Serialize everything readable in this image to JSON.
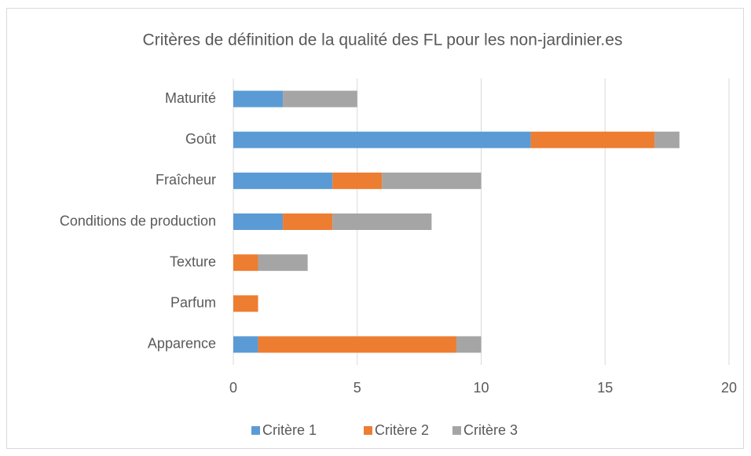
{
  "chart_data": {
    "type": "stacked_barh",
    "title": "Critères de définition de la qualité des FL pour les non-jardinier.es",
    "categories": [
      "Maturité",
      "Goût",
      "Fraîcheur",
      "Conditions de production",
      "Texture",
      "Parfum",
      "Apparence"
    ],
    "series": [
      {
        "name": "Critère 1",
        "color": "#5b9bd5",
        "values": [
          2,
          12,
          4,
          2,
          0,
          0,
          1
        ]
      },
      {
        "name": "Critère 2",
        "color": "#ed7d31",
        "values": [
          0,
          5,
          2,
          2,
          1,
          1,
          8
        ]
      },
      {
        "name": "Critère 3",
        "color": "#a5a5a5",
        "values": [
          3,
          1,
          4,
          4,
          2,
          0,
          1
        ]
      }
    ],
    "xlim": [
      0,
      20
    ],
    "xticks": [
      0,
      5,
      10,
      15,
      20
    ],
    "grid": true,
    "legend": "bottom"
  }
}
